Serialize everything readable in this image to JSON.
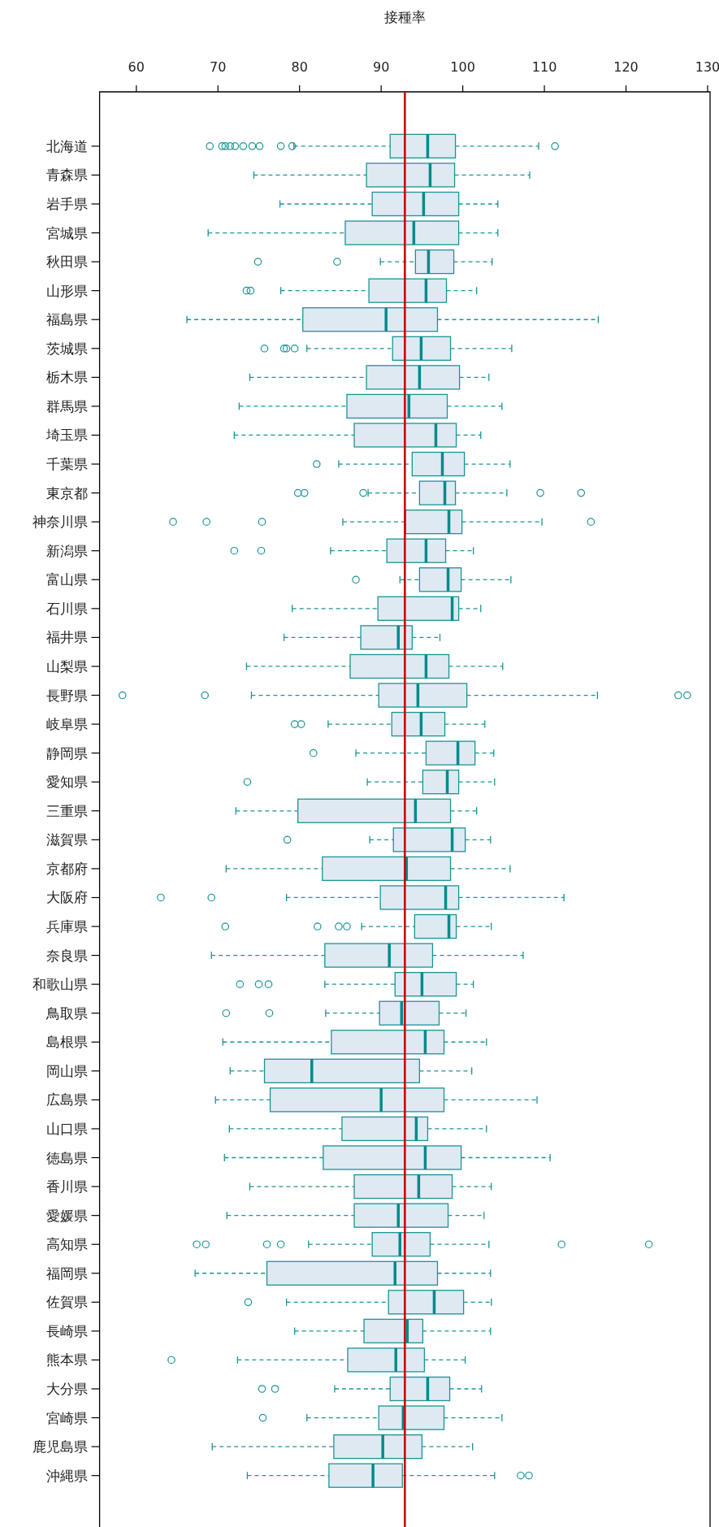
{
  "chart_data": {
    "type": "box",
    "orientation": "horizontal",
    "xlabel": "接種率",
    "categories": [
      "北海道",
      "青森県",
      "岩手県",
      "宮城県",
      "秋田県",
      "山形県",
      "福島県",
      "茨城県",
      "栃木県",
      "群馬県",
      "埼玉県",
      "千葉県",
      "東京都",
      "神奈川県",
      "新潟県",
      "富山県",
      "石川県",
      "福井県",
      "山梨県",
      "長野県",
      "岐阜県",
      "静岡県",
      "愛知県",
      "三重県",
      "滋賀県",
      "京都府",
      "大阪府",
      "兵庫県",
      "奈良県",
      "和歌山県",
      "鳥取県",
      "島根県",
      "岡山県",
      "広島県",
      "山口県",
      "徳島県",
      "香川県",
      "愛媛県",
      "高知県",
      "福岡県",
      "佐賀県",
      "長崎県",
      "熊本県",
      "大分県",
      "宮崎県",
      "鹿児島県",
      "沖縄県"
    ],
    "color": "#1a9494",
    "boxes": [
      {
        "low": 79.3,
        "q1": 91.1,
        "median": 95.7,
        "q3": 99.1,
        "high": 109.3,
        "outliers": [
          69.0,
          70.5,
          70.9,
          71.5,
          72.1,
          73.1,
          74.2,
          75.1,
          77.7,
          79.1,
          111.3
        ]
      },
      {
        "low": 74.4,
        "q1": 88.2,
        "median": 96.0,
        "q3": 99.0,
        "high": 108.2
      },
      {
        "low": 77.6,
        "q1": 88.9,
        "median": 95.2,
        "q3": 99.5,
        "high": 104.3
      },
      {
        "low": 68.8,
        "q1": 85.6,
        "median": 94.0,
        "q3": 99.5,
        "high": 104.3
      },
      {
        "low": 89.9,
        "q1": 94.2,
        "median": 95.8,
        "q3": 98.9,
        "high": 103.6,
        "outliers": [
          74.9,
          84.6
        ]
      },
      {
        "low": 77.7,
        "q1": 88.5,
        "median": 95.5,
        "q3": 98.0,
        "high": 101.7,
        "outliers": [
          73.5,
          74.0
        ]
      },
      {
        "low": 66.2,
        "q1": 80.4,
        "median": 90.6,
        "q3": 96.9,
        "high": 116.6
      },
      {
        "low": 80.9,
        "q1": 91.4,
        "median": 94.9,
        "q3": 98.5,
        "high": 106.0,
        "outliers": [
          75.7,
          78.1,
          78.4,
          79.4
        ]
      },
      {
        "low": 73.9,
        "q1": 88.2,
        "median": 94.7,
        "q3": 99.6,
        "high": 103.2
      },
      {
        "low": 72.6,
        "q1": 85.8,
        "median": 93.4,
        "q3": 98.1,
        "high": 104.8
      },
      {
        "low": 72.0,
        "q1": 86.7,
        "median": 96.7,
        "q3": 99.2,
        "high": 102.2
      },
      {
        "low": 84.8,
        "q1": 93.8,
        "median": 97.5,
        "q3": 100.2,
        "high": 105.8,
        "outliers": [
          82.1
        ]
      },
      {
        "low": 88.4,
        "q1": 94.7,
        "median": 97.8,
        "q3": 99.1,
        "high": 105.4,
        "outliers": [
          79.8,
          80.6,
          87.8,
          109.5,
          114.5
        ]
      },
      {
        "low": 85.3,
        "q1": 93.0,
        "median": 98.3,
        "q3": 99.9,
        "high": 109.7,
        "outliers": [
          64.5,
          68.6,
          75.4,
          115.7
        ]
      },
      {
        "low": 83.8,
        "q1": 90.7,
        "median": 95.5,
        "q3": 97.9,
        "high": 101.3,
        "outliers": [
          72.0,
          75.3
        ]
      },
      {
        "low": 92.3,
        "q1": 94.7,
        "median": 98.2,
        "q3": 99.8,
        "high": 105.9,
        "outliers": [
          86.9
        ]
      },
      {
        "low": 79.1,
        "q1": 89.6,
        "median": 98.7,
        "q3": 99.5,
        "high": 102.2
      },
      {
        "low": 78.1,
        "q1": 87.5,
        "median": 92.1,
        "q3": 93.8,
        "high": 97.2
      },
      {
        "low": 73.5,
        "q1": 86.2,
        "median": 95.5,
        "q3": 98.3,
        "high": 104.9
      },
      {
        "low": 74.1,
        "q1": 89.7,
        "median": 94.5,
        "q3": 100.5,
        "high": 116.5,
        "outliers": [
          58.3,
          68.4,
          126.4,
          127.5
        ]
      },
      {
        "low": 83.5,
        "q1": 91.3,
        "median": 94.9,
        "q3": 97.8,
        "high": 102.7,
        "outliers": [
          79.4,
          80.2
        ]
      },
      {
        "low": 86.9,
        "q1": 95.5,
        "median": 99.4,
        "q3": 101.5,
        "high": 103.8,
        "outliers": [
          81.7
        ]
      },
      {
        "low": 88.3,
        "q1": 95.1,
        "median": 98.1,
        "q3": 99.5,
        "high": 103.9,
        "outliers": [
          73.6
        ]
      },
      {
        "low": 72.2,
        "q1": 79.8,
        "median": 94.2,
        "q3": 98.5,
        "high": 101.7
      },
      {
        "low": 88.6,
        "q1": 91.5,
        "median": 98.7,
        "q3": 100.3,
        "high": 103.4,
        "outliers": [
          78.5
        ]
      },
      {
        "low": 71.0,
        "q1": 82.8,
        "median": 93.1,
        "q3": 98.5,
        "high": 105.8
      },
      {
        "low": 78.4,
        "q1": 89.9,
        "median": 97.9,
        "q3": 99.5,
        "high": 112.4,
        "outliers": [
          63.0,
          69.2
        ]
      },
      {
        "low": 87.6,
        "q1": 94.1,
        "median": 98.3,
        "q3": 99.2,
        "high": 103.5,
        "outliers": [
          70.9,
          82.2,
          84.8,
          85.8
        ]
      },
      {
        "low": 69.2,
        "q1": 83.1,
        "median": 91.0,
        "q3": 96.3,
        "high": 107.4
      },
      {
        "low": 83.1,
        "q1": 91.7,
        "median": 95.0,
        "q3": 99.2,
        "high": 101.3,
        "outliers": [
          72.7,
          75.0,
          76.2
        ]
      },
      {
        "low": 83.2,
        "q1": 89.8,
        "median": 92.5,
        "q3": 97.1,
        "high": 100.4,
        "outliers": [
          71.0,
          76.3
        ]
      },
      {
        "low": 70.6,
        "q1": 83.9,
        "median": 95.4,
        "q3": 97.7,
        "high": 102.9
      },
      {
        "low": 71.5,
        "q1": 75.7,
        "median": 81.5,
        "q3": 94.7,
        "high": 101.1
      },
      {
        "low": 69.7,
        "q1": 76.4,
        "median": 90.0,
        "q3": 97.7,
        "high": 109.1
      },
      {
        "low": 71.4,
        "q1": 85.2,
        "median": 94.3,
        "q3": 95.7,
        "high": 102.9
      },
      {
        "low": 70.8,
        "q1": 82.9,
        "median": 95.4,
        "q3": 99.8,
        "high": 110.7
      },
      {
        "low": 73.9,
        "q1": 86.7,
        "median": 94.6,
        "q3": 98.7,
        "high": 103.5
      },
      {
        "low": 71.1,
        "q1": 86.7,
        "median": 92.1,
        "q3": 98.2,
        "high": 102.6
      },
      {
        "low": 81.1,
        "q1": 88.9,
        "median": 92.3,
        "q3": 96.0,
        "high": 103.2,
        "outliers": [
          67.4,
          68.5,
          76.0,
          77.7,
          112.1,
          122.8
        ]
      },
      {
        "low": 67.2,
        "q1": 76.0,
        "median": 91.7,
        "q3": 96.9,
        "high": 103.4
      },
      {
        "low": 78.4,
        "q1": 90.9,
        "median": 96.5,
        "q3": 100.1,
        "high": 103.5,
        "outliers": [
          73.7
        ]
      },
      {
        "low": 79.4,
        "q1": 87.9,
        "median": 93.2,
        "q3": 95.1,
        "high": 103.4
      },
      {
        "low": 72.4,
        "q1": 85.9,
        "median": 91.8,
        "q3": 95.3,
        "high": 100.3,
        "outliers": [
          64.3
        ]
      },
      {
        "low": 84.3,
        "q1": 91.1,
        "median": 95.7,
        "q3": 98.4,
        "high": 102.3,
        "outliers": [
          75.4,
          77.0
        ]
      },
      {
        "low": 80.9,
        "q1": 89.7,
        "median": 92.7,
        "q3": 97.7,
        "high": 104.8,
        "outliers": [
          75.5
        ]
      },
      {
        "low": 69.3,
        "q1": 84.2,
        "median": 90.2,
        "q3": 95.0,
        "high": 101.2
      },
      {
        "low": 73.6,
        "q1": 83.6,
        "median": 89.0,
        "q3": 92.6,
        "high": 103.9,
        "outliers": [
          107.1,
          108.1
        ]
      }
    ],
    "xlim": [
      55.5,
      130.3
    ],
    "xticks": [
      60,
      70,
      80,
      90,
      100,
      110,
      120,
      130
    ],
    "ref_lines": [
      {
        "axis": "x",
        "value": 92.9,
        "color": "#cc0000"
      }
    ]
  }
}
